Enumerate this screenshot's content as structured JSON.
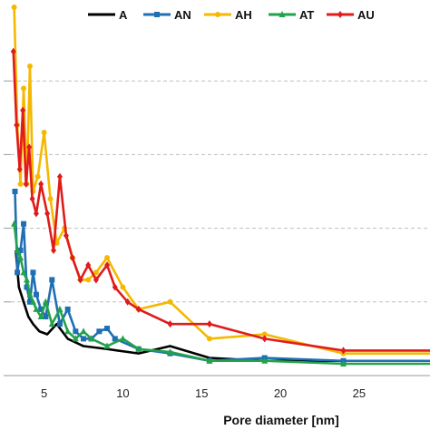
{
  "chart_data": {
    "type": "line",
    "xlabel": "Pore diameter [nm]",
    "ylabel": "",
    "xlim": [
      2.2,
      29.5
    ],
    "ylim": [
      0,
      25
    ],
    "x_ticks": [
      5,
      10,
      15,
      20,
      25
    ],
    "y_gridlines": [
      5,
      10,
      15,
      20
    ],
    "grid": "horizontal dashed",
    "legend_position": "top",
    "series": [
      {
        "name": "A",
        "color": "#000000",
        "marker": "none",
        "x": [
          3.2,
          3.4,
          3.7,
          4.0,
          4.3,
          4.7,
          5.2,
          5.8,
          6.5,
          7.5,
          9.0,
          11.0,
          13.0,
          15.5,
          19.0,
          24.0,
          29.5
        ],
        "y": [
          8.5,
          6.0,
          5.0,
          4.0,
          3.5,
          3.0,
          2.8,
          3.5,
          2.5,
          2.0,
          1.8,
          1.5,
          2.0,
          1.2,
          1.0,
          1.0,
          1.0
        ]
      },
      {
        "name": "AN",
        "color": "#1f6fb5",
        "marker": "square",
        "x": [
          3.15,
          3.3,
          3.5,
          3.7,
          3.9,
          4.1,
          4.3,
          4.5,
          4.8,
          5.1,
          5.5,
          6.0,
          6.5,
          7.0,
          7.5,
          8.0,
          8.5,
          9.0,
          9.5,
          11.0,
          13.0,
          15.5,
          19.0,
          24.0,
          29.5
        ],
        "y": [
          12.5,
          7.0,
          8.5,
          10.3,
          6.0,
          5.0,
          7.0,
          5.5,
          4.5,
          4.0,
          6.5,
          3.5,
          4.5,
          3.0,
          2.5,
          2.5,
          3.0,
          3.2,
          2.5,
          1.8,
          1.5,
          1.0,
          1.2,
          1.0,
          1.0
        ]
      },
      {
        "name": "AH",
        "color": "#f5b800",
        "marker": "circle",
        "x": [
          3.1,
          3.3,
          3.5,
          3.7,
          3.9,
          4.1,
          4.3,
          4.6,
          5.0,
          5.4,
          5.8,
          6.3,
          6.8,
          7.3,
          7.8,
          8.3,
          9.0,
          10.0,
          11.0,
          13.0,
          15.5,
          19.0,
          24.0,
          29.5
        ],
        "y": [
          25.0,
          17.0,
          13.0,
          19.5,
          13.0,
          21.0,
          12.5,
          13.5,
          16.5,
          12.0,
          9.0,
          10.0,
          8.0,
          6.5,
          6.5,
          7.0,
          8.0,
          6.0,
          4.5,
          5.0,
          2.5,
          2.8,
          1.5,
          1.5
        ]
      },
      {
        "name": "AT",
        "color": "#22a24a",
        "marker": "triangle",
        "x": [
          3.1,
          3.3,
          3.5,
          3.7,
          3.9,
          4.1,
          4.3,
          4.5,
          4.8,
          5.1,
          5.5,
          6.0,
          6.5,
          7.0,
          7.5,
          8.0,
          9.0,
          10.0,
          11.0,
          13.0,
          15.5,
          19.0,
          24.0,
          29.5
        ],
        "y": [
          10.3,
          8.5,
          8.0,
          7.0,
          6.5,
          5.5,
          5.0,
          4.5,
          4.0,
          5.0,
          3.5,
          4.5,
          3.0,
          2.5,
          3.0,
          2.5,
          2.0,
          2.5,
          1.8,
          1.6,
          1.0,
          1.0,
          0.8,
          0.8
        ]
      },
      {
        "name": "AU",
        "color": "#e01b1b",
        "marker": "diamond",
        "x": [
          3.05,
          3.25,
          3.45,
          3.65,
          3.85,
          4.05,
          4.25,
          4.5,
          4.8,
          5.2,
          5.6,
          6.0,
          6.4,
          6.8,
          7.3,
          7.8,
          8.3,
          9.0,
          9.5,
          10.3,
          11.0,
          13.0,
          15.5,
          19.0,
          24.0,
          29.5
        ],
        "y": [
          22.0,
          17.0,
          14.0,
          18.0,
          13.0,
          15.5,
          12.0,
          11.0,
          13.0,
          11.0,
          8.5,
          13.5,
          9.5,
          8.0,
          6.5,
          7.5,
          6.5,
          7.5,
          6.0,
          5.0,
          4.5,
          3.5,
          3.5,
          2.5,
          1.7,
          1.7
        ]
      }
    ]
  }
}
